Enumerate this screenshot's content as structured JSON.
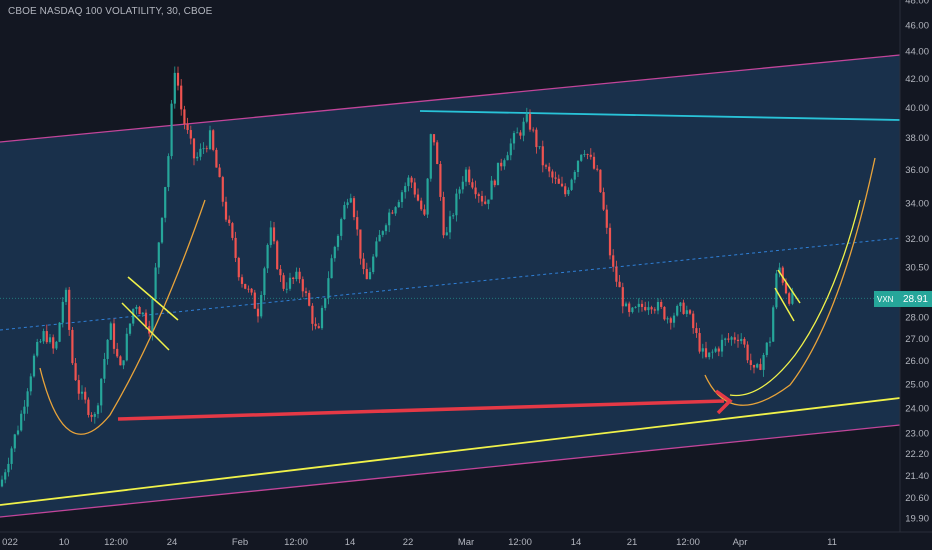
{
  "title": "CBOE NASDAQ 100 VOLATILITY, 30, CBOE",
  "last_price": {
    "symbol": "VXN",
    "value": "28.91"
  },
  "colors": {
    "background": "#131722",
    "channel_fill": "#1c3a5a",
    "channel_border": "#c2459a",
    "resistance": "#29c3d8",
    "support": "#f0f24a",
    "midline": "#2f7fd6",
    "arrow": "#e53946",
    "curve": "#e8a33a",
    "flag": "#f0f24a",
    "up": "#26a69a",
    "down": "#ef5350"
  },
  "chart_data": {
    "type": "candlestick",
    "title": "CBOE NASDAQ 100 VOLATILITY, 30, CBOE",
    "ylim": [
      19.5,
      48.0
    ],
    "y_scale": "log",
    "y_ticks": [
      "48.00",
      "46.00",
      "44.00",
      "42.00",
      "40.00",
      "38.00",
      "36.00",
      "34.00",
      "32.00",
      "30.50",
      "28.00",
      "27.00",
      "26.00",
      "25.00",
      "24.00",
      "23.00",
      "22.20",
      "21.40",
      "20.60",
      "19.90"
    ],
    "x_ticks": [
      "022",
      "10",
      "12:00",
      "24",
      "Feb",
      "12:00",
      "14",
      "22",
      "Mar",
      "12:00",
      "14",
      "21",
      "12:00",
      "Apr",
      "11"
    ],
    "last_value": 28.91,
    "price_path": [
      {
        "t": 0,
        "v": 21.0
      },
      {
        "t": 20,
        "v": 23.5
      },
      {
        "t": 35,
        "v": 26.3
      },
      {
        "t": 45,
        "v": 27.3
      },
      {
        "t": 55,
        "v": 26.3
      },
      {
        "t": 65,
        "v": 29.5
      },
      {
        "t": 72,
        "v": 26.0
      },
      {
        "t": 80,
        "v": 24.5
      },
      {
        "t": 95,
        "v": 23.6
      },
      {
        "t": 110,
        "v": 27.6
      },
      {
        "t": 120,
        "v": 25.5
      },
      {
        "t": 135,
        "v": 28.8
      },
      {
        "t": 150,
        "v": 27.5
      },
      {
        "t": 160,
        "v": 32.5
      },
      {
        "t": 168,
        "v": 36.5
      },
      {
        "t": 175,
        "v": 43.0
      },
      {
        "t": 182,
        "v": 39.5
      },
      {
        "t": 195,
        "v": 36.5
      },
      {
        "t": 210,
        "v": 38.0
      },
      {
        "t": 225,
        "v": 33.5
      },
      {
        "t": 240,
        "v": 30.0
      },
      {
        "t": 258,
        "v": 28.3
      },
      {
        "t": 270,
        "v": 32.5
      },
      {
        "t": 282,
        "v": 29.5
      },
      {
        "t": 300,
        "v": 30.0
      },
      {
        "t": 318,
        "v": 27.0
      },
      {
        "t": 330,
        "v": 30.5
      },
      {
        "t": 350,
        "v": 35.0
      },
      {
        "t": 365,
        "v": 29.5
      },
      {
        "t": 385,
        "v": 33.0
      },
      {
        "t": 410,
        "v": 35.5
      },
      {
        "t": 425,
        "v": 33.0
      },
      {
        "t": 432,
        "v": 39.0
      },
      {
        "t": 445,
        "v": 31.8
      },
      {
        "t": 465,
        "v": 36.0
      },
      {
        "t": 485,
        "v": 34.0
      },
      {
        "t": 505,
        "v": 37.0
      },
      {
        "t": 528,
        "v": 39.2
      },
      {
        "t": 545,
        "v": 36.0
      },
      {
        "t": 565,
        "v": 34.5
      },
      {
        "t": 583,
        "v": 37.5
      },
      {
        "t": 598,
        "v": 35.5
      },
      {
        "t": 612,
        "v": 30.5
      },
      {
        "t": 628,
        "v": 28.0
      },
      {
        "t": 650,
        "v": 28.8
      },
      {
        "t": 668,
        "v": 28.0
      },
      {
        "t": 685,
        "v": 28.5
      },
      {
        "t": 705,
        "v": 26.0
      },
      {
        "t": 722,
        "v": 26.8
      },
      {
        "t": 740,
        "v": 27.2
      },
      {
        "t": 755,
        "v": 25.3
      },
      {
        "t": 770,
        "v": 27.0
      },
      {
        "t": 778,
        "v": 30.7
      },
      {
        "t": 788,
        "v": 29.0
      },
      {
        "t": 795,
        "v": 28.91
      }
    ]
  }
}
